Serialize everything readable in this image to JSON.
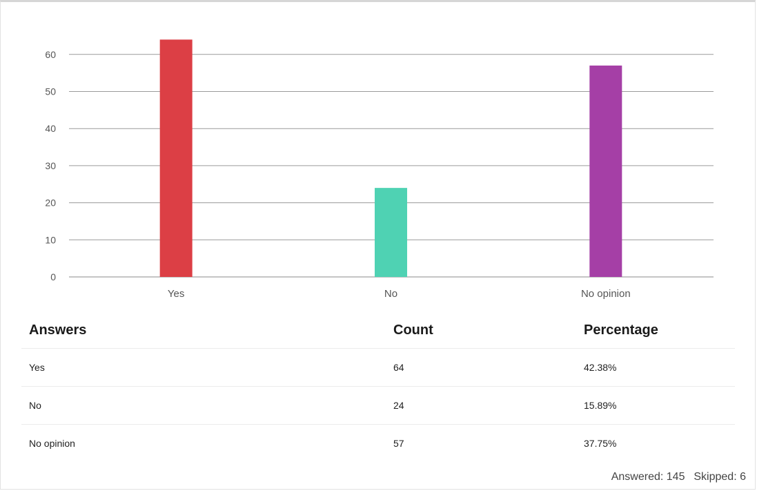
{
  "chart_data": {
    "type": "bar",
    "categories": [
      "Yes",
      "No",
      "No opinion"
    ],
    "values": [
      64,
      24,
      57
    ],
    "colors": [
      "#dc3f45",
      "#4fd2b3",
      "#a53fa6"
    ],
    "yticks": [
      0,
      10,
      20,
      30,
      40,
      50,
      60
    ],
    "ylim": [
      0,
      65
    ],
    "grid": true,
    "legend": "none"
  },
  "table": {
    "headers": {
      "answers": "Answers",
      "count": "Count",
      "percentage": "Percentage"
    },
    "rows": [
      {
        "answer": "Yes",
        "count": "64",
        "percentage": "42.38%"
      },
      {
        "answer": "No",
        "count": "24",
        "percentage": "15.89%"
      },
      {
        "answer": "No opinion",
        "count": "57",
        "percentage": "37.75%"
      }
    ]
  },
  "summary": {
    "answered_label": "Answered:",
    "answered_value": "145",
    "skipped_label": "Skipped:",
    "skipped_value": "6"
  }
}
